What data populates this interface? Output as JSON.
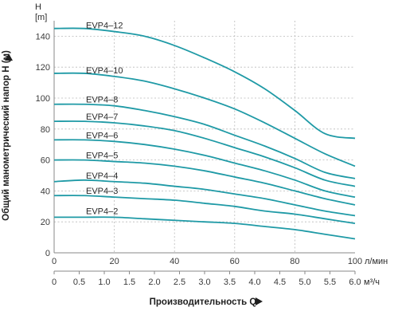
{
  "chart_data": {
    "type": "line",
    "ylabel_unit": "H",
    "ylabel_unit_bracket": "[m]",
    "ylabel": "Общий манометрический напор H (м)",
    "xlabel": "Производительность Q",
    "x_unit": "л/мин",
    "x2_unit": "м³/ч",
    "xlim": [
      0,
      100
    ],
    "ylim": [
      0,
      150
    ],
    "x_ticks": [
      "0",
      "20",
      "40",
      "60",
      "80",
      "100"
    ],
    "x2_ticks": [
      "0",
      "0.5",
      "1.0",
      "1.5",
      "2.0",
      "2.5",
      "3.0",
      "3.5",
      "4.0",
      "4.5",
      "5.0",
      "5.5",
      "6.0"
    ],
    "y_ticks": [
      "0",
      "20",
      "40",
      "60",
      "80",
      "100",
      "120",
      "140"
    ],
    "grid": true,
    "curve_color": "#1f9aa6",
    "x": [
      0,
      10,
      20,
      30,
      40,
      50,
      60,
      70,
      80,
      90,
      100
    ],
    "series": [
      {
        "name": "EVP4–12",
        "values": [
          145,
          145,
          143,
          140,
          134,
          126,
          117,
          106,
          92,
          77,
          74
        ]
      },
      {
        "name": "EVP4–10",
        "values": [
          116,
          116,
          114,
          111,
          106,
          100,
          93,
          84,
          74,
          64,
          56
        ]
      },
      {
        "name": "EVP4–8",
        "values": [
          96,
          96,
          95,
          92,
          88,
          83,
          76,
          69,
          61,
          52,
          48
        ]
      },
      {
        "name": "EVP4–7",
        "values": [
          85,
          85,
          84,
          82,
          79,
          74,
          68,
          62,
          55,
          47,
          43
        ]
      },
      {
        "name": "EVP4–6",
        "values": [
          73,
          73,
          72,
          70,
          67,
          63,
          58,
          53,
          47,
          40,
          36
        ]
      },
      {
        "name": "EVP4–5",
        "values": [
          60,
          60,
          59,
          58,
          56,
          53,
          49,
          45,
          40,
          35,
          31
        ]
      },
      {
        "name": "EVP4–4",
        "values": [
          46,
          47,
          46,
          45,
          43,
          41,
          38,
          35,
          31,
          27,
          24
        ]
      },
      {
        "name": "EVP4–3",
        "values": [
          37,
          37,
          36,
          35,
          34,
          32,
          30,
          27,
          25,
          22,
          19
        ]
      },
      {
        "name": "EVP4–2",
        "values": [
          23,
          23,
          23,
          22,
          21,
          20,
          19,
          17,
          15,
          12,
          9
        ]
      }
    ]
  }
}
